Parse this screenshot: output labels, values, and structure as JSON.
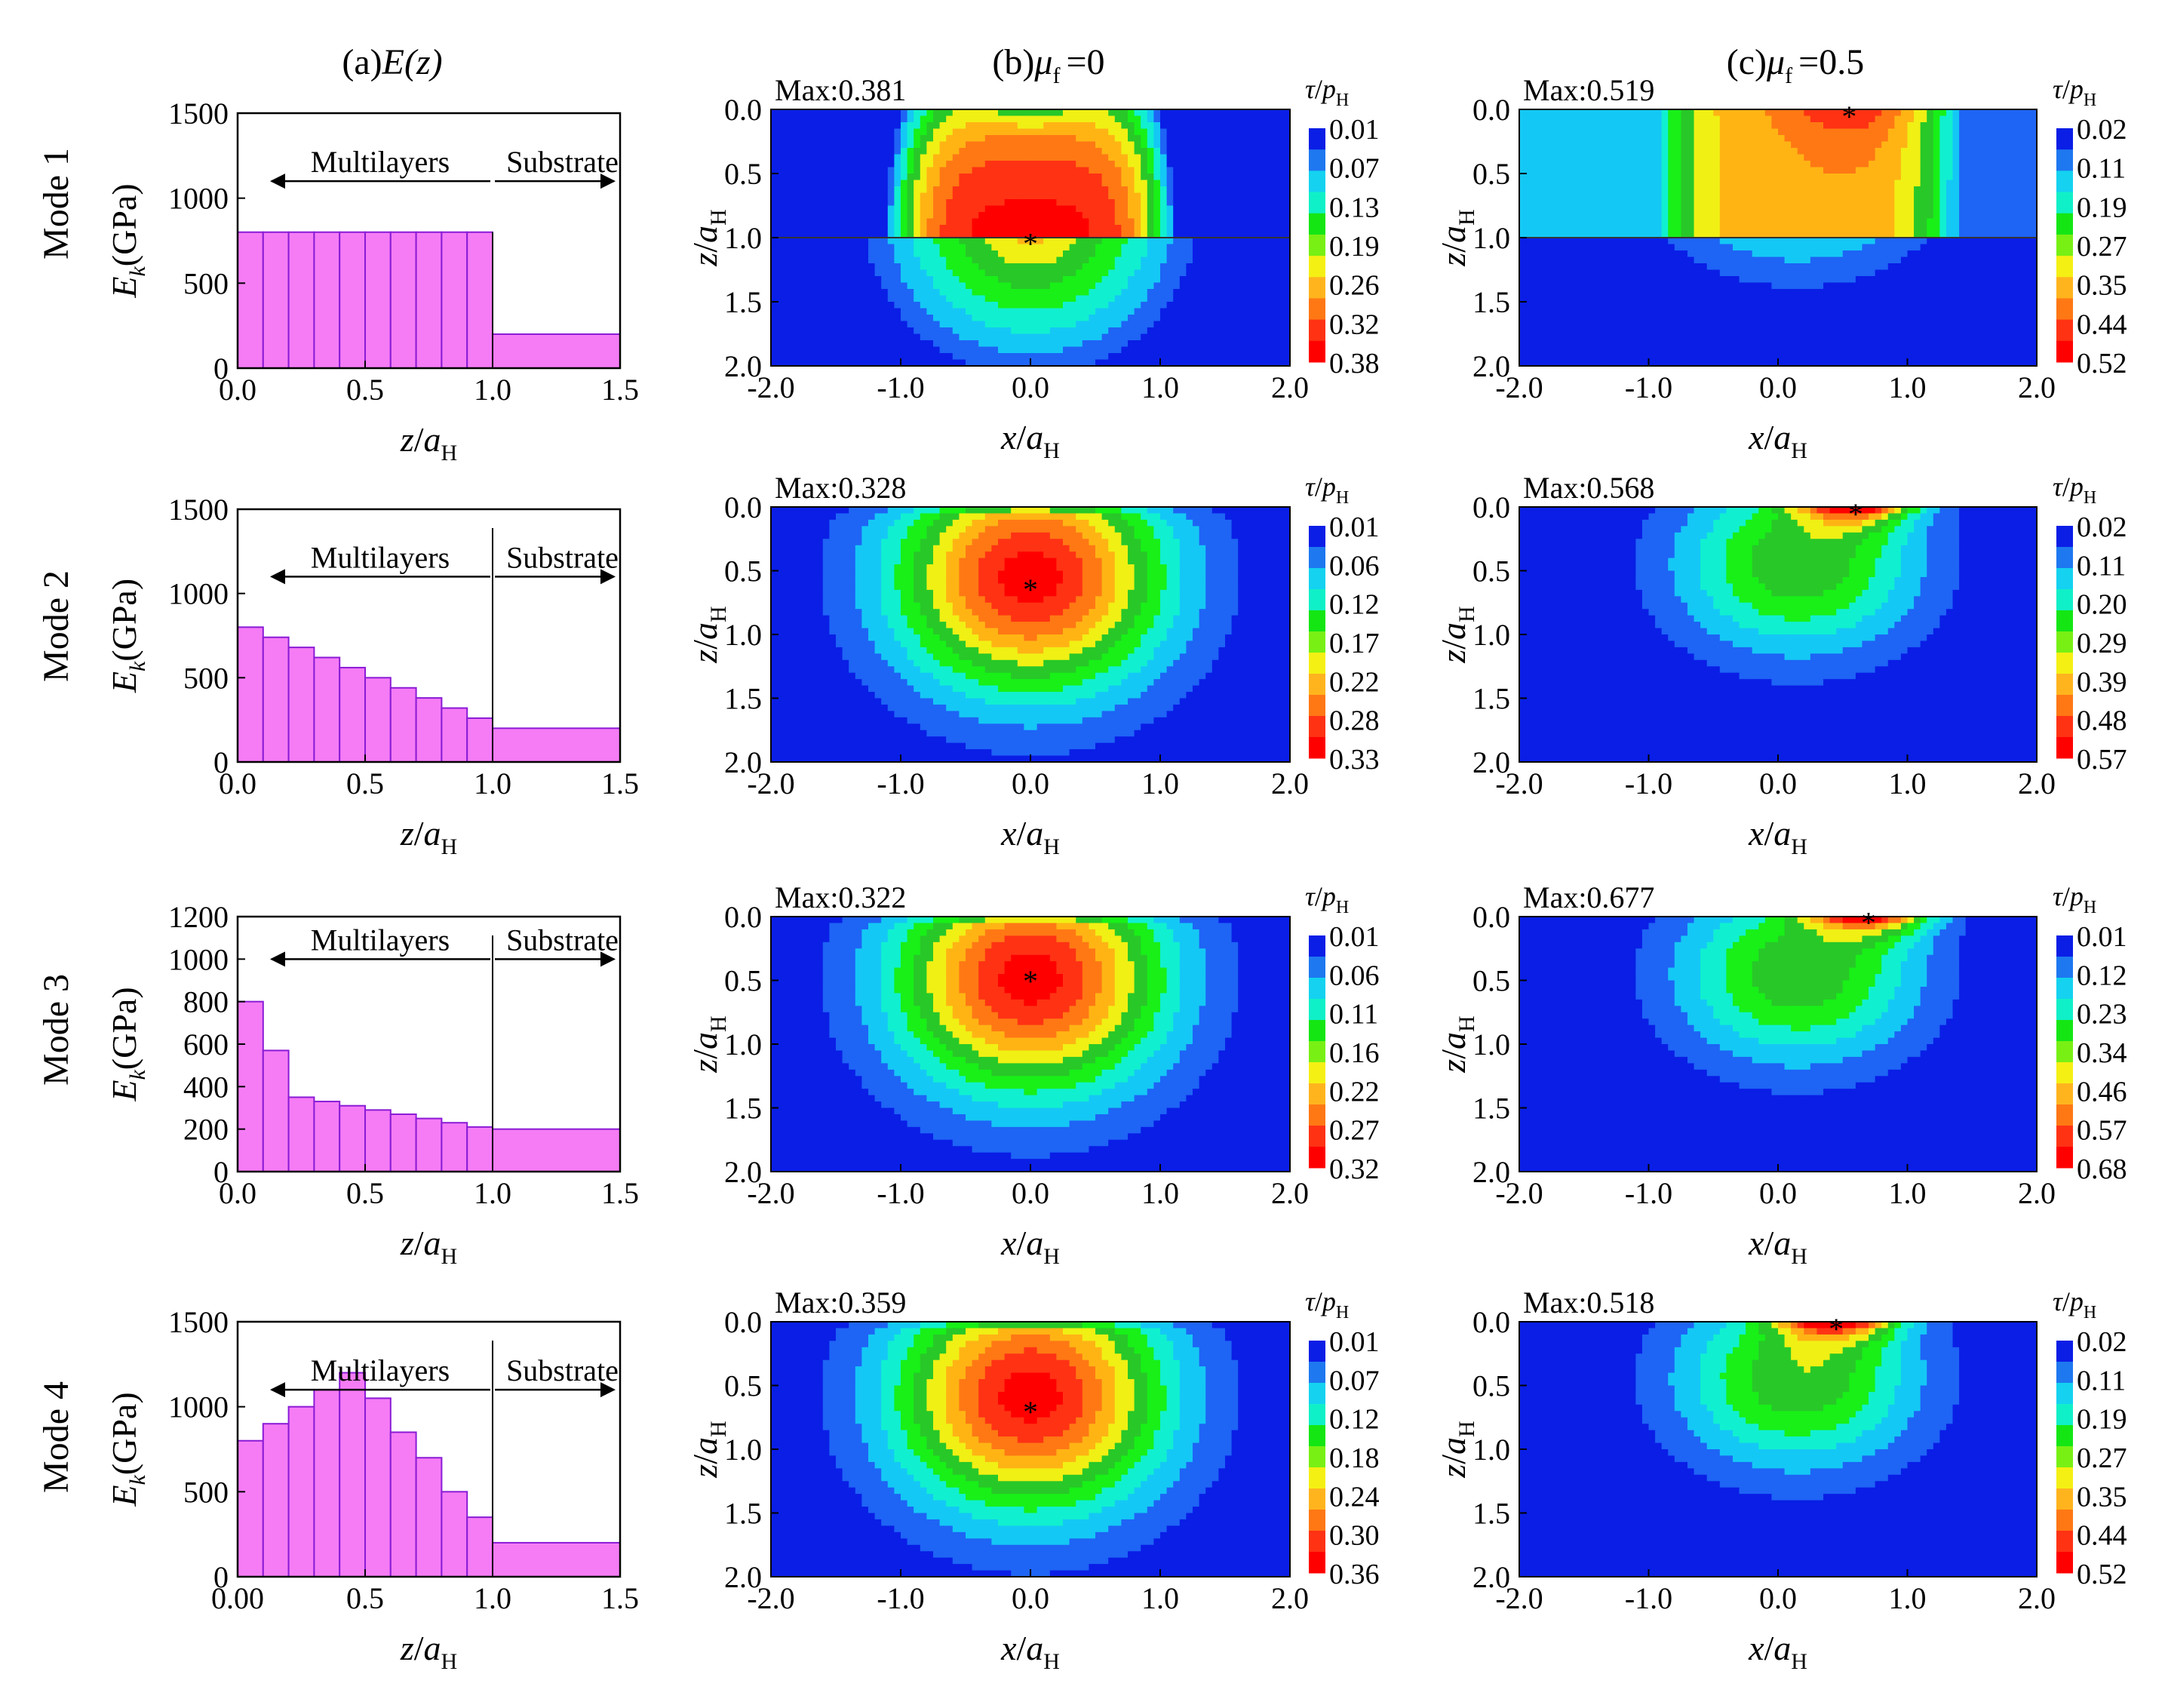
{
  "panel_titles": {
    "a_prefix": "(a)",
    "a_func": "E(z)",
    "b_prefix": "(b)",
    "b_mu": "μ",
    "b_sub": "f",
    "b_eq": "=0",
    "c_prefix": "(c)",
    "c_mu": "μ",
    "c_sub": "f",
    "c_eq": "=0.5"
  },
  "mode_labels": [
    "Mode 1",
    "Mode 2",
    "Mode 3",
    "Mode 4"
  ],
  "labels": {
    "multilayers": "Multilayers",
    "substrate": "Substrate",
    "ylabel_e": "E",
    "ylabel_e_sub": "k",
    "ylabel_e_unit": "(GPa)",
    "z_italic": "z",
    "a_italic": "a",
    "sub_H": "H",
    "x_italic": "x",
    "slash": "/",
    "tau": "τ",
    "p": "p",
    "max_prefix": "Max:"
  },
  "chart_data": [
    {
      "type": "step",
      "panel": "a",
      "mode": "Mode 1",
      "xlabel": "z/aH",
      "ylabel": "Ek(GPa)",
      "xlim": [
        0,
        1.5
      ],
      "ylim": [
        0,
        1500
      ],
      "yticks": [
        0,
        500,
        1000,
        1500
      ],
      "xticks": [
        "0.0",
        "0.5",
        "1.0",
        "1.5"
      ],
      "layer_edges": [
        0,
        0.1,
        0.2,
        0.3,
        0.4,
        0.5,
        0.6,
        0.7,
        0.8,
        0.9,
        1.0
      ],
      "layer_values": [
        800,
        800,
        800,
        800,
        800,
        800,
        800,
        800,
        800,
        800
      ],
      "substrate_value": 200,
      "separator_x": 1.0
    },
    {
      "type": "step",
      "panel": "a",
      "mode": "Mode 2",
      "xlabel": "z/aH",
      "ylabel": "Ek(GPa)",
      "xlim": [
        0,
        1.5
      ],
      "ylim": [
        0,
        1500
      ],
      "yticks": [
        0,
        500,
        1000,
        1500
      ],
      "xticks": [
        "0.0",
        "0.5",
        "1.0",
        "1.5"
      ],
      "layer_edges": [
        0,
        0.1,
        0.2,
        0.3,
        0.4,
        0.5,
        0.6,
        0.7,
        0.8,
        0.9,
        1.0
      ],
      "layer_values": [
        800,
        740,
        680,
        620,
        560,
        500,
        440,
        380,
        320,
        260
      ],
      "substrate_value": 200,
      "separator_x": 1.0
    },
    {
      "type": "step",
      "panel": "a",
      "mode": "Mode 3",
      "xlabel": "z/aH",
      "ylabel": "Ek(GPa)",
      "xlim": [
        0,
        1.5
      ],
      "ylim": [
        0,
        1200
      ],
      "yticks": [
        0,
        200,
        400,
        600,
        800,
        1000,
        1200
      ],
      "xticks": [
        "0.0",
        "0.5",
        "1.0",
        "1.5"
      ],
      "layer_edges": [
        0,
        0.1,
        0.2,
        0.3,
        0.4,
        0.5,
        0.6,
        0.7,
        0.8,
        0.9,
        1.0
      ],
      "layer_values": [
        800,
        570,
        350,
        330,
        310,
        290,
        270,
        250,
        230,
        210
      ],
      "substrate_value": 200,
      "separator_x": 1.0
    },
    {
      "type": "step",
      "panel": "a",
      "mode": "Mode 4",
      "xlabel": "z/aH",
      "ylabel": "Ek(GPa)",
      "xlim": [
        0,
        1.5
      ],
      "ylim": [
        0,
        1500
      ],
      "yticks": [
        0,
        500,
        1000,
        1500
      ],
      "xticks": [
        "0.00",
        "0.5",
        "1.0",
        "1.5"
      ],
      "layer_edges": [
        0,
        0.1,
        0.2,
        0.3,
        0.4,
        0.5,
        0.6,
        0.7,
        0.8,
        0.9,
        1.0
      ],
      "layer_values": [
        800,
        900,
        1000,
        1100,
        1200,
        1050,
        850,
        700,
        500,
        350
      ],
      "substrate_value": 200,
      "separator_x": 1.0
    },
    {
      "type": "heatmap",
      "panel": "b",
      "mode": "Mode 1",
      "max_text": "0.381",
      "max_pos": [
        0.0,
        1.02
      ],
      "pressure_sub": "H",
      "colorbar_ticks": [
        "0.01",
        "0.07",
        "0.13",
        "0.19",
        "0.26",
        "0.32",
        "0.38"
      ],
      "peak_value": 0.381,
      "kind": "interface",
      "interface": 1.0,
      "xlim": [
        -2,
        2
      ],
      "ylim": [
        0,
        2
      ],
      "xticks": [
        "-2.0",
        "-1.0",
        "0.0",
        "1.0",
        "2.0"
      ],
      "yticks": [
        "0.0",
        "0.5",
        "1.0",
        "1.5",
        "2.0"
      ]
    },
    {
      "type": "heatmap",
      "panel": "b",
      "mode": "Mode 2",
      "max_text": "0.328",
      "max_pos": [
        0.0,
        0.62
      ],
      "pressure_sub": "H",
      "colorbar_ticks": [
        "0.01",
        "0.06",
        "0.12",
        "0.17",
        "0.22",
        "0.28",
        "0.33"
      ],
      "peak_value": 0.328,
      "kind": "sub",
      "center": [
        0.0,
        0.55
      ],
      "xlim": [
        -2,
        2
      ],
      "ylim": [
        0,
        2
      ],
      "xticks": [
        "-2.0",
        "-1.0",
        "0.0",
        "1.0",
        "2.0"
      ],
      "yticks": [
        "0.0",
        "0.5",
        "1.0",
        "1.5",
        "2.0"
      ]
    },
    {
      "type": "heatmap",
      "panel": "b",
      "mode": "Mode 3",
      "max_text": "0.322",
      "max_pos": [
        0.0,
        0.48
      ],
      "pressure_sub": "H",
      "colorbar_ticks": [
        "0.01",
        "0.06",
        "0.11",
        "0.16",
        "0.22",
        "0.27",
        "0.32"
      ],
      "peak_value": 0.322,
      "kind": "sub",
      "center": [
        0.0,
        0.48
      ],
      "xlim": [
        -2,
        2
      ],
      "ylim": [
        0,
        2
      ],
      "xticks": [
        "-2.0",
        "-1.0",
        "0.0",
        "1.0",
        "2.0"
      ],
      "yticks": [
        "0.0",
        "0.5",
        "1.0",
        "1.5",
        "2.0"
      ]
    },
    {
      "type": "heatmap",
      "panel": "b",
      "mode": "Mode 4",
      "max_text": "0.359",
      "max_pos": [
        0.0,
        0.68
      ],
      "pressure_sub": "H",
      "colorbar_ticks": [
        "0.01",
        "0.07",
        "0.12",
        "0.18",
        "0.24",
        "0.30",
        "0.36"
      ],
      "peak_value": 0.359,
      "kind": "sub",
      "center": [
        0.0,
        0.58
      ],
      "xlim": [
        -2,
        2
      ],
      "ylim": [
        0,
        2
      ],
      "xticks": [
        "-2.0",
        "-1.0",
        "0.0",
        "1.0",
        "2.0"
      ],
      "yticks": [
        "0.0",
        "0.5",
        "1.0",
        "1.5",
        "2.0"
      ]
    },
    {
      "type": "heatmap",
      "panel": "c",
      "mode": "Mode 1",
      "max_text": "0.519",
      "max_pos": [
        0.55,
        0.03
      ],
      "pressure_sub": "H",
      "colorbar_ticks": [
        "0.02",
        "0.11",
        "0.19",
        "0.27",
        "0.35",
        "0.44",
        "0.52"
      ],
      "peak_value": 0.519,
      "kind": "surface_coating",
      "interface": 1.0,
      "xlim": [
        -2,
        2
      ],
      "ylim": [
        0,
        2
      ],
      "xticks": [
        "-2.0",
        "-1.0",
        "0.0",
        "1.0",
        "2.0"
      ],
      "yticks": [
        "0.0",
        "0.5",
        "1.0",
        "1.5",
        "2.0"
      ]
    },
    {
      "type": "heatmap",
      "panel": "c",
      "mode": "Mode 2",
      "max_text": "0.568",
      "max_pos": [
        0.6,
        0.03
      ],
      "pressure_sub": "H",
      "colorbar_ticks": [
        "0.02",
        "0.11",
        "0.20",
        "0.29",
        "0.39",
        "0.48",
        "0.57"
      ],
      "peak_value": 0.568,
      "kind": "surface",
      "xlim": [
        -2,
        2
      ],
      "ylim": [
        0,
        2
      ],
      "xticks": [
        "-2.0",
        "-1.0",
        "0.0",
        "1.0",
        "2.0"
      ],
      "yticks": [
        "0.0",
        "0.5",
        "1.0",
        "1.5",
        "2.0"
      ]
    },
    {
      "type": "heatmap",
      "panel": "c",
      "mode": "Mode 3",
      "max_text": "0.677",
      "max_pos": [
        0.7,
        0.02
      ],
      "pressure_sub": "H",
      "colorbar_ticks": [
        "0.01",
        "0.12",
        "0.23",
        "0.34",
        "0.46",
        "0.57",
        "0.68"
      ],
      "peak_value": 0.677,
      "kind": "surface",
      "xlim": [
        -2,
        2
      ],
      "ylim": [
        0,
        2
      ],
      "xticks": [
        "-2.0",
        "-1.0",
        "0.0",
        "1.0",
        "2.0"
      ],
      "yticks": [
        "0.0",
        "0.5",
        "1.0",
        "1.5",
        "2.0"
      ]
    },
    {
      "type": "heatmap",
      "panel": "c",
      "mode": "Mode 4",
      "max_text": "0.518",
      "max_pos": [
        0.45,
        0.03
      ],
      "pressure_sub": "H",
      "colorbar_ticks": [
        "0.02",
        "0.11",
        "0.19",
        "0.27",
        "0.35",
        "0.44",
        "0.52"
      ],
      "peak_value": 0.518,
      "kind": "surface",
      "xlim": [
        -2,
        2
      ],
      "ylim": [
        0,
        2
      ],
      "xticks": [
        "-2.0",
        "-1.0",
        "0.0",
        "1.0",
        "2.0"
      ],
      "yticks": [
        "0.0",
        "0.5",
        "1.0",
        "1.5",
        "2.0"
      ]
    }
  ],
  "colors": {
    "bar_fill": "#f57cf5",
    "bar_edge": "#8a1bd6",
    "contour_levels": [
      "#0a1ee6",
      "#1e64f5",
      "#14c8f5",
      "#10f0d0",
      "#18f018",
      "#28c828",
      "#f0f014",
      "#ffb414",
      "#ff7814",
      "#ff3214",
      "#ff0000"
    ],
    "colorbar_levels": [
      "#0a1ee6",
      "#1e78f0",
      "#14d2f0",
      "#10f0c8",
      "#14e614",
      "#78f014",
      "#f5f014",
      "#ffb41e",
      "#ff7814",
      "#ff3214",
      "#ff0000"
    ]
  }
}
